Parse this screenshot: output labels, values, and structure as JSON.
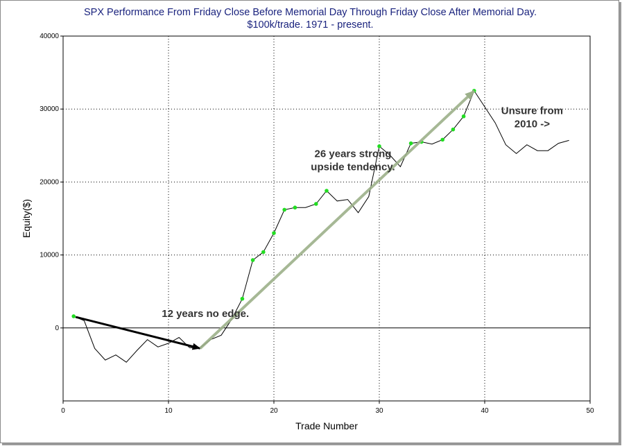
{
  "title": {
    "line1": "SPX Performance From Friday Close Before Memorial Day Through Friday Close After Memorial Day.",
    "line2": "$100k/trade. 1971 - present."
  },
  "chart_data": {
    "type": "line",
    "title": "SPX Performance From Friday Close Before Memorial Day Through Friday Close After Memorial Day.",
    "subtitle": "$100k/trade. 1971 - present.",
    "xlabel": "Trade Number",
    "ylabel": "Equity($)",
    "xlim": [
      0,
      50
    ],
    "ylim": [
      -10000,
      40000
    ],
    "x_ticks": [
      0,
      10,
      20,
      30,
      40,
      50
    ],
    "y_ticks": [
      0,
      10000,
      20000,
      30000,
      40000
    ],
    "grid": "dotted",
    "series": [
      {
        "color": "#000000",
        "points": [
          [
            1,
            1600
          ],
          [
            2,
            1000
          ],
          [
            3,
            -2800
          ],
          [
            4,
            -4400
          ],
          [
            5,
            -3700
          ],
          [
            6,
            -4700
          ],
          [
            7,
            -3100
          ],
          [
            8,
            -1600
          ],
          [
            9,
            -2600
          ],
          [
            10,
            -2100
          ],
          [
            11,
            -1300
          ],
          [
            12,
            -2700
          ],
          [
            13,
            -2700
          ],
          [
            14,
            -1600
          ],
          [
            15,
            -1000
          ],
          [
            16,
            1200
          ],
          [
            17,
            4000
          ],
          [
            18,
            9300
          ],
          [
            19,
            10400
          ],
          [
            20,
            13000
          ],
          [
            21,
            16200
          ],
          [
            22,
            16500
          ],
          [
            23,
            16500
          ],
          [
            24,
            17000
          ],
          [
            25,
            18800
          ],
          [
            26,
            17400
          ],
          [
            27,
            17600
          ],
          [
            28,
            15800
          ],
          [
            29,
            18000
          ],
          [
            30,
            24900
          ],
          [
            31,
            23700
          ],
          [
            32,
            22100
          ],
          [
            33,
            25300
          ],
          [
            34,
            25500
          ],
          [
            35,
            25200
          ],
          [
            36,
            25800
          ],
          [
            37,
            27200
          ],
          [
            38,
            29000
          ],
          [
            39,
            32500
          ],
          [
            40,
            30300
          ],
          [
            41,
            28100
          ],
          [
            42,
            25100
          ],
          [
            43,
            23900
          ],
          [
            44,
            25100
          ],
          [
            45,
            24300
          ],
          [
            46,
            24300
          ],
          [
            47,
            25300
          ],
          [
            48,
            25700
          ]
        ]
      }
    ],
    "highlight_points": {
      "color": "#22dd22",
      "x": [
        1,
        17,
        18,
        19,
        20,
        21,
        22,
        24,
        25,
        30,
        33,
        34,
        36,
        37,
        38,
        39
      ]
    },
    "annotations": [
      {
        "text_lines": [
          "12 years no edge."
        ],
        "x": 13.5,
        "y": 1500
      },
      {
        "text_lines": [
          "26 years strong",
          "upside tendency."
        ],
        "x": 27.5,
        "y": 23400
      },
      {
        "text_lines": [
          "Unsure from",
          "2010 ->"
        ],
        "x": 44.5,
        "y": 29300
      }
    ],
    "arrows": [
      {
        "color": "#000000",
        "from": [
          1.2,
          1500
        ],
        "to": [
          13,
          -2800
        ]
      },
      {
        "color": "#9cb08a",
        "from": [
          13,
          -2800
        ],
        "to": [
          39,
          32500
        ]
      }
    ]
  }
}
